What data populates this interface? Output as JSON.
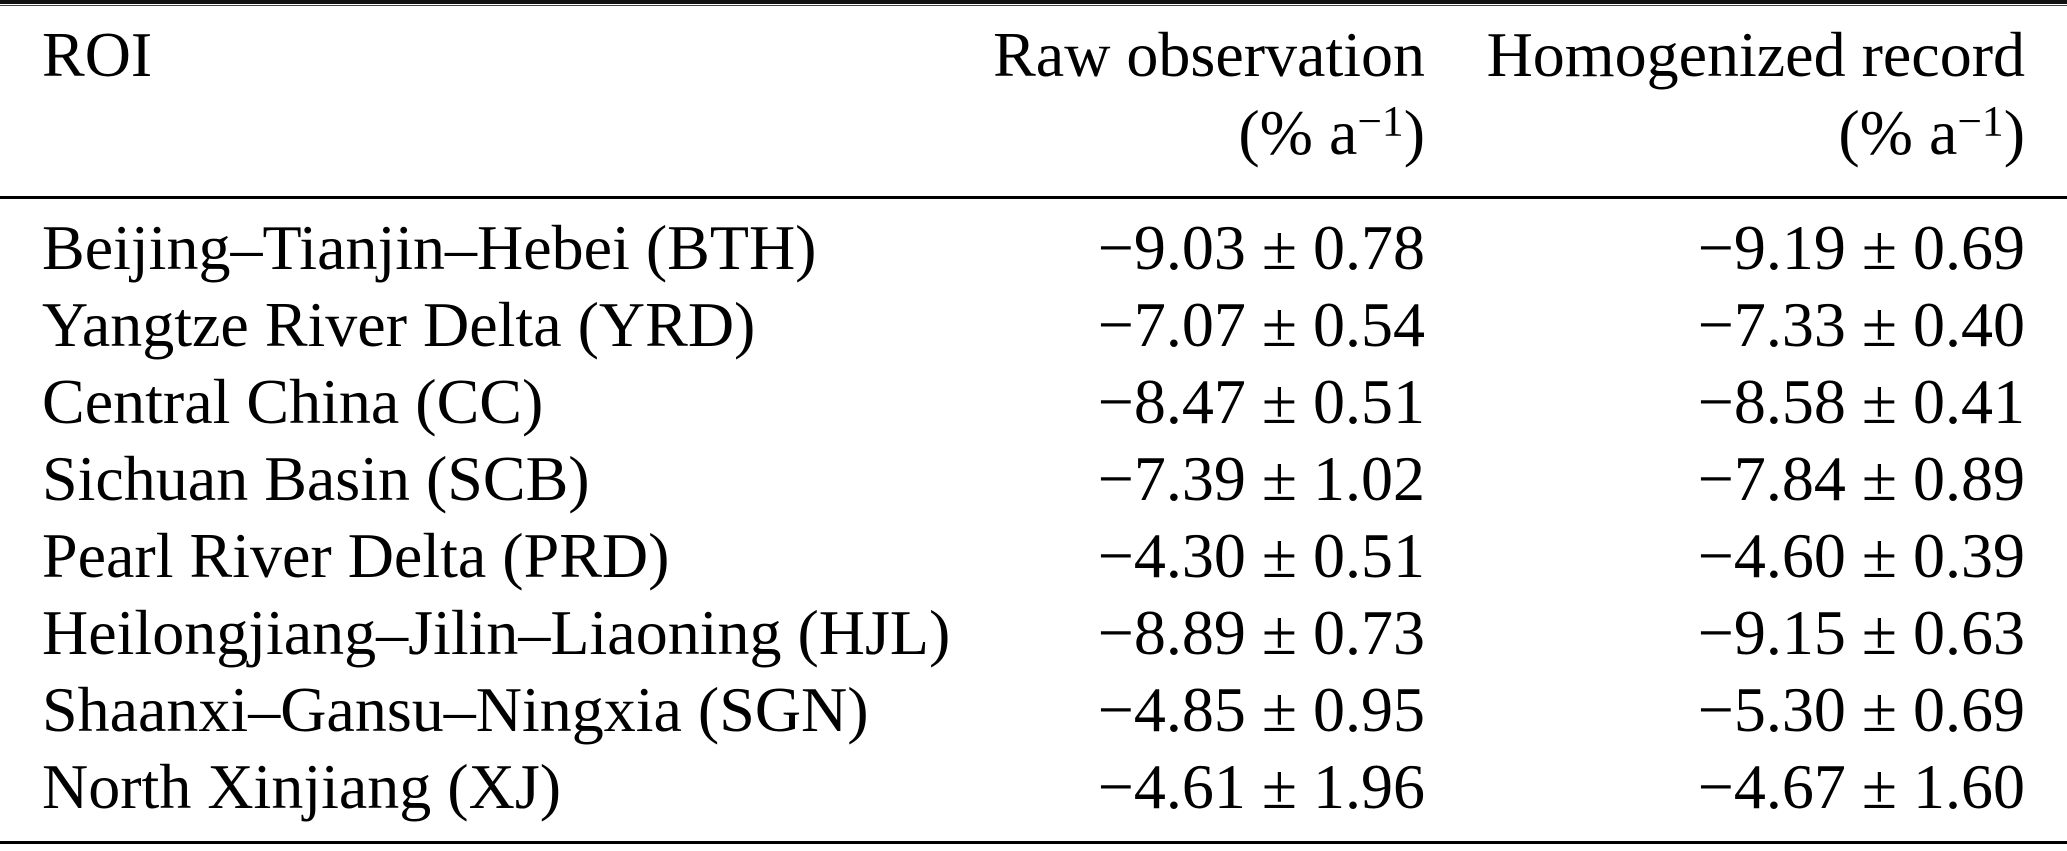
{
  "figure": {
    "kind": "journal-table",
    "background_color": "#ffffff",
    "text_color": "#000000",
    "rule_color": "#000000"
  },
  "table": {
    "columns": [
      {
        "label": "ROI"
      },
      {
        "label": "Raw observation",
        "unit_prefix": "(% a",
        "unit_exponent": "−1",
        "unit_suffix": ")"
      },
      {
        "label": "Homogenized record",
        "unit_prefix": "(% a",
        "unit_exponent": "−1",
        "unit_suffix": ")"
      }
    ],
    "rows": [
      {
        "roi": "Beijing–Tianjin–Hebei (BTH)",
        "raw": "−9.03 ± 0.78",
        "homogenized": "−9.19 ± 0.69"
      },
      {
        "roi": "Yangtze River Delta (YRD)",
        "raw": "−7.07 ± 0.54",
        "homogenized": "−7.33 ± 0.40"
      },
      {
        "roi": "Central China (CC)",
        "raw": "−8.47 ± 0.51",
        "homogenized": "−8.58 ± 0.41"
      },
      {
        "roi": "Sichuan Basin (SCB)",
        "raw": "−7.39 ± 1.02",
        "homogenized": "−7.84 ± 0.89"
      },
      {
        "roi": "Pearl River Delta (PRD)",
        "raw": "−4.30 ± 0.51",
        "homogenized": "−4.60 ± 0.39"
      },
      {
        "roi": "Heilongjiang–Jilin–Liaoning (HJL)",
        "raw": "−8.89 ± 0.73",
        "homogenized": "−9.15 ± 0.63"
      },
      {
        "roi": "Shaanxi–Gansu–Ningxia (SGN)",
        "raw": "−4.85 ± 0.95",
        "homogenized": "−5.30 ± 0.69"
      },
      {
        "roi": "North Xinjiang (XJ)",
        "raw": "−4.61 ± 1.96",
        "homogenized": "−4.67 ± 1.60"
      }
    ]
  },
  "chart_data": {
    "type": "table",
    "columns": [
      "ROI",
      "Raw observation (% a−1)",
      "Homogenized record (% a−1)"
    ],
    "rows": [
      [
        "Beijing–Tianjin–Hebei (BTH)",
        "−9.03 ± 0.78",
        "−9.19 ± 0.69"
      ],
      [
        "Yangtze River Delta (YRD)",
        "−7.07 ± 0.54",
        "−7.33 ± 0.40"
      ],
      [
        "Central China (CC)",
        "−8.47 ± 0.51",
        "−8.58 ± 0.41"
      ],
      [
        "Sichuan Basin (SCB)",
        "−7.39 ± 1.02",
        "−7.84 ± 0.89"
      ],
      [
        "Pearl River Delta (PRD)",
        "−4.30 ± 0.51",
        "−4.60 ± 0.39"
      ],
      [
        "Heilongjiang–Jilin–Liaoning (HJL)",
        "−8.89 ± 0.73",
        "−9.15 ± 0.63"
      ],
      [
        "Shaanxi–Gansu–Ningxia (SGN)",
        "−4.85 ± 0.95",
        "−5.30 ± 0.69"
      ],
      [
        "North Xinjiang (XJ)",
        "−4.61 ± 1.96",
        "−4.67 ± 1.60"
      ]
    ]
  }
}
